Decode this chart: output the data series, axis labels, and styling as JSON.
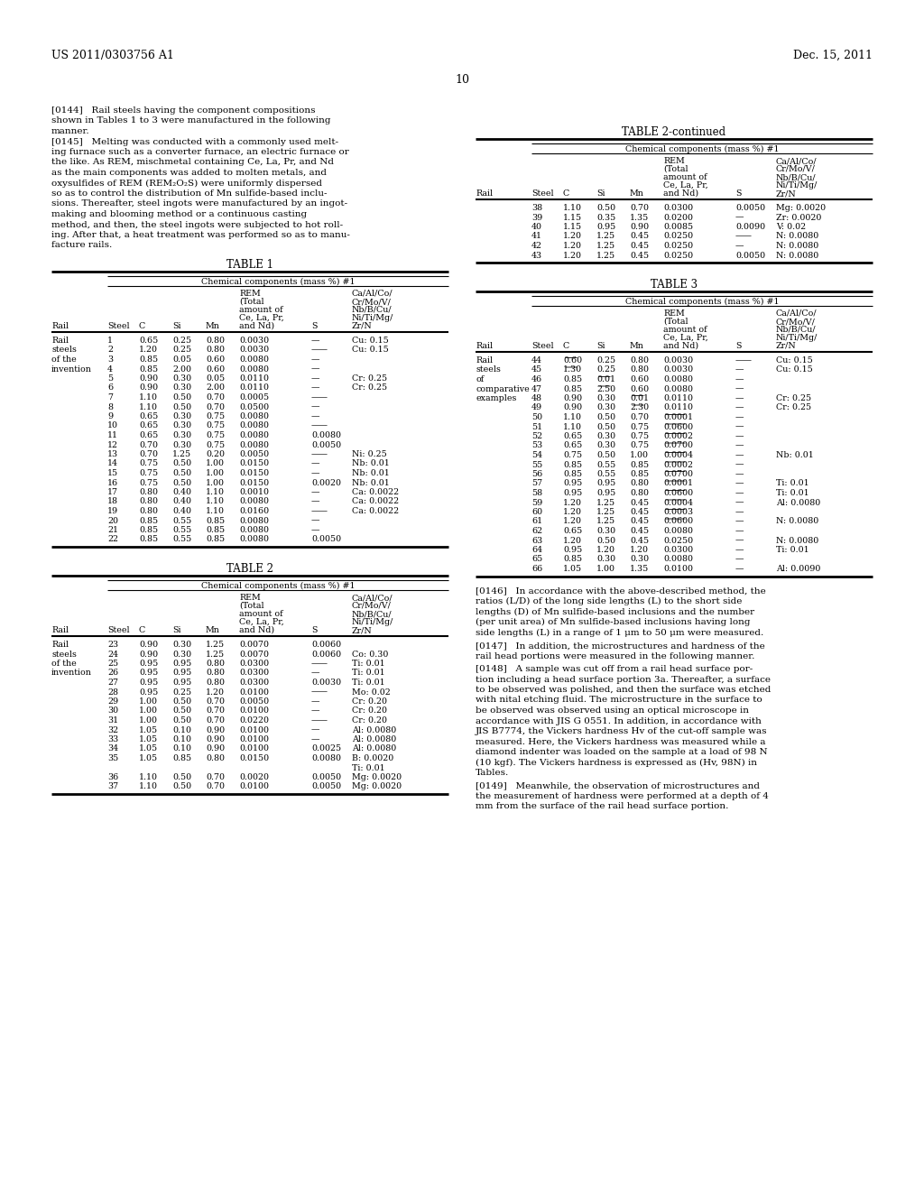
{
  "header_left": "US 2011/0303756 A1",
  "header_right": "Dec. 15, 2011",
  "page_number": "10",
  "table1_rows": [
    [
      "Rail\nsteels\nof the\ninvention",
      "1",
      "0.65",
      "0.25",
      "0.80",
      "0.0030",
      "—",
      "Cu: 0.15"
    ],
    [
      "",
      "2",
      "1.20",
      "0.25",
      "0.80",
      "0.0030",
      "——",
      "Cu: 0.15"
    ],
    [
      "",
      "3",
      "0.85",
      "0.05",
      "0.60",
      "0.0080",
      "—",
      ""
    ],
    [
      "",
      "4",
      "0.85",
      "2.00",
      "0.60",
      "0.0080",
      "—",
      ""
    ],
    [
      "",
      "5",
      "0.90",
      "0.30",
      "0.05",
      "0.0110",
      "—",
      "Cr: 0.25"
    ],
    [
      "",
      "6",
      "0.90",
      "0.30",
      "2.00",
      "0.0110",
      "—",
      "Cr: 0.25"
    ],
    [
      "",
      "7",
      "1.10",
      "0.50",
      "0.70",
      "0.0005",
      "——",
      ""
    ],
    [
      "",
      "8",
      "1.10",
      "0.50",
      "0.70",
      "0.0500",
      "—",
      ""
    ],
    [
      "",
      "9",
      "0.65",
      "0.30",
      "0.75",
      "0.0080",
      "—",
      ""
    ],
    [
      "",
      "10",
      "0.65",
      "0.30",
      "0.75",
      "0.0080",
      "——",
      ""
    ],
    [
      "",
      "11",
      "0.65",
      "0.30",
      "0.75",
      "0.0080",
      "0.0080",
      ""
    ],
    [
      "",
      "12",
      "0.70",
      "0.30",
      "0.75",
      "0.0080",
      "0.0050",
      ""
    ],
    [
      "",
      "13",
      "0.70",
      "1.25",
      "0.20",
      "0.0050",
      "——",
      "Ni: 0.25"
    ],
    [
      "",
      "14",
      "0.75",
      "0.50",
      "1.00",
      "0.0150",
      "—",
      "Nb: 0.01"
    ],
    [
      "",
      "15",
      "0.75",
      "0.50",
      "1.00",
      "0.0150",
      "—",
      "Nb: 0.01"
    ],
    [
      "",
      "16",
      "0.75",
      "0.50",
      "1.00",
      "0.0150",
      "0.0020",
      "Nb: 0.01"
    ],
    [
      "",
      "17",
      "0.80",
      "0.40",
      "1.10",
      "0.0010",
      "—",
      "Ca: 0.0022"
    ],
    [
      "",
      "18",
      "0.80",
      "0.40",
      "1.10",
      "0.0080",
      "—",
      "Ca: 0.0022"
    ],
    [
      "",
      "19",
      "0.80",
      "0.40",
      "1.10",
      "0.0160",
      "——",
      "Ca: 0.0022"
    ],
    [
      "",
      "20",
      "0.85",
      "0.55",
      "0.85",
      "0.0080",
      "—",
      ""
    ],
    [
      "",
      "21",
      "0.85",
      "0.55",
      "0.85",
      "0.0080",
      "—",
      ""
    ],
    [
      "",
      "22",
      "0.85",
      "0.55",
      "0.85",
      "0.0080",
      "0.0050",
      ""
    ]
  ],
  "table2_rows": [
    [
      "Rail\nsteels\nof the\ninvention",
      "23",
      "0.90",
      "0.30",
      "1.25",
      "0.0070",
      "0.0060",
      ""
    ],
    [
      "",
      "24",
      "0.90",
      "0.30",
      "1.25",
      "0.0070",
      "0.0060",
      "Co: 0.30"
    ],
    [
      "",
      "25",
      "0.95",
      "0.95",
      "0.80",
      "0.0300",
      "——",
      "Ti: 0.01"
    ],
    [
      "",
      "26",
      "0.95",
      "0.95",
      "0.80",
      "0.0300",
      "—",
      "Ti: 0.01"
    ],
    [
      "",
      "27",
      "0.95",
      "0.95",
      "0.80",
      "0.0300",
      "0.0030",
      "Ti: 0.01"
    ],
    [
      "",
      "28",
      "0.95",
      "0.25",
      "1.20",
      "0.0100",
      "——",
      "Mo: 0.02"
    ],
    [
      "",
      "29",
      "1.00",
      "0.50",
      "0.70",
      "0.0050",
      "—",
      "Cr: 0.20"
    ],
    [
      "",
      "30",
      "1.00",
      "0.50",
      "0.70",
      "0.0100",
      "—",
      "Cr: 0.20"
    ],
    [
      "",
      "31",
      "1.00",
      "0.50",
      "0.70",
      "0.0220",
      "——",
      "Cr: 0.20"
    ],
    [
      "",
      "32",
      "1.05",
      "0.10",
      "0.90",
      "0.0100",
      "—",
      "Al: 0.0080"
    ],
    [
      "",
      "33",
      "1.05",
      "0.10",
      "0.90",
      "0.0100",
      "—",
      "Al: 0.0080"
    ],
    [
      "",
      "34",
      "1.05",
      "0.10",
      "0.90",
      "0.0100",
      "0.0025",
      "Al: 0.0080"
    ],
    [
      "",
      "35",
      "1.05",
      "0.85",
      "0.80",
      "0.0150",
      "0.0080",
      "B: 0.0020\nTi: 0.01"
    ],
    [
      "",
      "36",
      "1.10",
      "0.50",
      "0.70",
      "0.0020",
      "0.0050",
      "Mg: 0.0020"
    ],
    [
      "",
      "37",
      "1.10",
      "0.50",
      "0.70",
      "0.0100",
      "0.0050",
      "Mg: 0.0020"
    ]
  ],
  "table2c_rows": [
    [
      "",
      "38",
      "1.10",
      "0.50",
      "0.70",
      "0.0300",
      "0.0050",
      "Mg: 0.0020"
    ],
    [
      "",
      "39",
      "1.15",
      "0.35",
      "1.35",
      "0.0200",
      "—",
      "Zr: 0.0020"
    ],
    [
      "",
      "40",
      "1.15",
      "0.95",
      "0.90",
      "0.0085",
      "0.0090",
      "V: 0.02"
    ],
    [
      "",
      "41",
      "1.20",
      "1.25",
      "0.45",
      "0.0250",
      "——",
      "N: 0.0080"
    ],
    [
      "",
      "42",
      "1.20",
      "1.25",
      "0.45",
      "0.0250",
      "—",
      "N: 0.0080"
    ],
    [
      "",
      "43",
      "1.20",
      "1.25",
      "0.45",
      "0.0250",
      "0.0050",
      "N: 0.0080"
    ]
  ],
  "table3_rows": [
    [
      "Rail\nsteels\nof\ncomparative\nexamples",
      "44",
      "0.60",
      "0.25",
      "0.80",
      "0.0030",
      "——",
      "Cu: 0.15",
      "u_c"
    ],
    [
      "",
      "45",
      "1.30",
      "0.25",
      "0.80",
      "0.0030",
      "—",
      "Cu: 0.15",
      "u_c"
    ],
    [
      "",
      "46",
      "0.85",
      "0.01",
      "0.60",
      "0.0080",
      "—",
      "",
      "u_si"
    ],
    [
      "",
      "47",
      "0.85",
      "2.50",
      "0.60",
      "0.0080",
      "—",
      "",
      "u_si"
    ],
    [
      "",
      "48",
      "0.90",
      "0.30",
      "0.01",
      "0.0110",
      "—",
      "Cr: 0.25",
      "u_mn"
    ],
    [
      "",
      "49",
      "0.90",
      "0.30",
      "2.30",
      "0.0110",
      "—",
      "Cr: 0.25",
      "u_mn"
    ],
    [
      "",
      "50",
      "1.10",
      "0.50",
      "0.70",
      "0.0001",
      "—",
      "",
      "u_rem"
    ],
    [
      "",
      "51",
      "1.10",
      "0.50",
      "0.75",
      "0.0600",
      "—",
      "",
      "u_rem"
    ],
    [
      "",
      "52",
      "0.65",
      "0.30",
      "0.75",
      "0.0002",
      "—",
      "",
      "u_rem"
    ],
    [
      "",
      "53",
      "0.65",
      "0.30",
      "0.75",
      "0.0700",
      "—",
      "",
      "u_rem"
    ],
    [
      "",
      "54",
      "0.75",
      "0.50",
      "1.00",
      "0.0004",
      "—",
      "Nb: 0.01",
      "u_rem"
    ],
    [
      "",
      "55",
      "0.85",
      "0.55",
      "0.85",
      "0.0002",
      "—",
      "",
      "u_rem"
    ],
    [
      "",
      "56",
      "0.85",
      "0.55",
      "0.85",
      "0.0700",
      "—",
      "",
      "u_rem"
    ],
    [
      "",
      "57",
      "0.95",
      "0.95",
      "0.80",
      "0.0001",
      "—",
      "Ti: 0.01",
      "u_rem"
    ],
    [
      "",
      "58",
      "0.95",
      "0.95",
      "0.80",
      "0.0600",
      "—",
      "Ti: 0.01",
      "u_rem"
    ],
    [
      "",
      "59",
      "1.20",
      "1.25",
      "0.45",
      "0.0004",
      "—",
      "Al: 0.0080",
      "u_rem"
    ],
    [
      "",
      "60",
      "1.20",
      "1.25",
      "0.45",
      "0.0003",
      "—",
      "",
      "u_rem"
    ],
    [
      "",
      "61",
      "1.20",
      "1.25",
      "0.45",
      "0.0600",
      "—",
      "N: 0.0080",
      "u_rem"
    ],
    [
      "",
      "62",
      "0.65",
      "0.30",
      "0.45",
      "0.0080",
      "—",
      "",
      ""
    ],
    [
      "",
      "63",
      "1.20",
      "0.50",
      "0.45",
      "0.0250",
      "—",
      "N: 0.0080",
      ""
    ],
    [
      "",
      "64",
      "0.95",
      "1.20",
      "1.20",
      "0.0300",
      "—",
      "Ti: 0.01",
      ""
    ],
    [
      "",
      "65",
      "0.85",
      "0.30",
      "0.30",
      "0.0080",
      "—",
      "",
      ""
    ],
    [
      "",
      "66",
      "1.05",
      "1.00",
      "1.35",
      "0.0100",
      "—",
      "Al: 0.0090",
      ""
    ]
  ],
  "para144": "[0144]   Rail steels having the component compositions\nshown in Tables 1 to 3 were manufactured in the following\nmanner.",
  "para145_lines": [
    "[0145]   Melting was conducted with a commonly used melt-",
    "ing furnace such as a converter furnace, an electric furnace or",
    "the like. As REM, mischmetal containing Ce, La, Pr, and Nd",
    "as the main components was added to molten metals, and",
    "oxysulfides of REM (REM₂O₂S) were uniformly dispersed",
    "so as to control the distribution of Mn sulfide-based inclu-",
    "sions. Thereafter, steel ingots were manufactured by an ingot-",
    "making and blooming method or a continuous casting",
    "method, and then, the steel ingots were subjected to hot roll-",
    "ing. After that, a heat treatment was performed so as to manu-",
    "facture rails."
  ],
  "para146_lines": [
    "[0146]   In accordance with the above-described method, the",
    "ratios (L/D) of the long side lengths (L) to the short side",
    "lengths (D) of Mn sulfide-based inclusions and the number",
    "(per unit area) of Mn sulfide-based inclusions having long",
    "side lengths (L) in a range of 1 μm to 50 μm were measured."
  ],
  "para147_lines": [
    "[0147]   In addition, the microstructures and hardness of the",
    "rail head portions were measured in the following manner."
  ],
  "para148_lines": [
    "[0148]   A sample was cut off from a rail head surface por-",
    "tion including a head surface portion 3a. Thereafter, a surface",
    "to be observed was polished, and then the surface was etched",
    "with nital etching fluid. The microstructure in the surface to",
    "be observed was observed using an optical microscope in",
    "accordance with JIS G 0551. In addition, in accordance with",
    "JIS B7774, the Vickers hardness Hv of the cut-off sample was",
    "measured. Here, the Vickers hardness was measured while a",
    "diamond indenter was loaded on the sample at a load of 98 N",
    "(10 kgf). The Vickers hardness is expressed as (Hv, 98N) in",
    "Tables."
  ],
  "para149_lines": [
    "[0149]   Meanwhile, the observation of microstructures and",
    "the measurement of hardness were performed at a depth of 4",
    "mm from the surface of the rail head surface portion."
  ]
}
